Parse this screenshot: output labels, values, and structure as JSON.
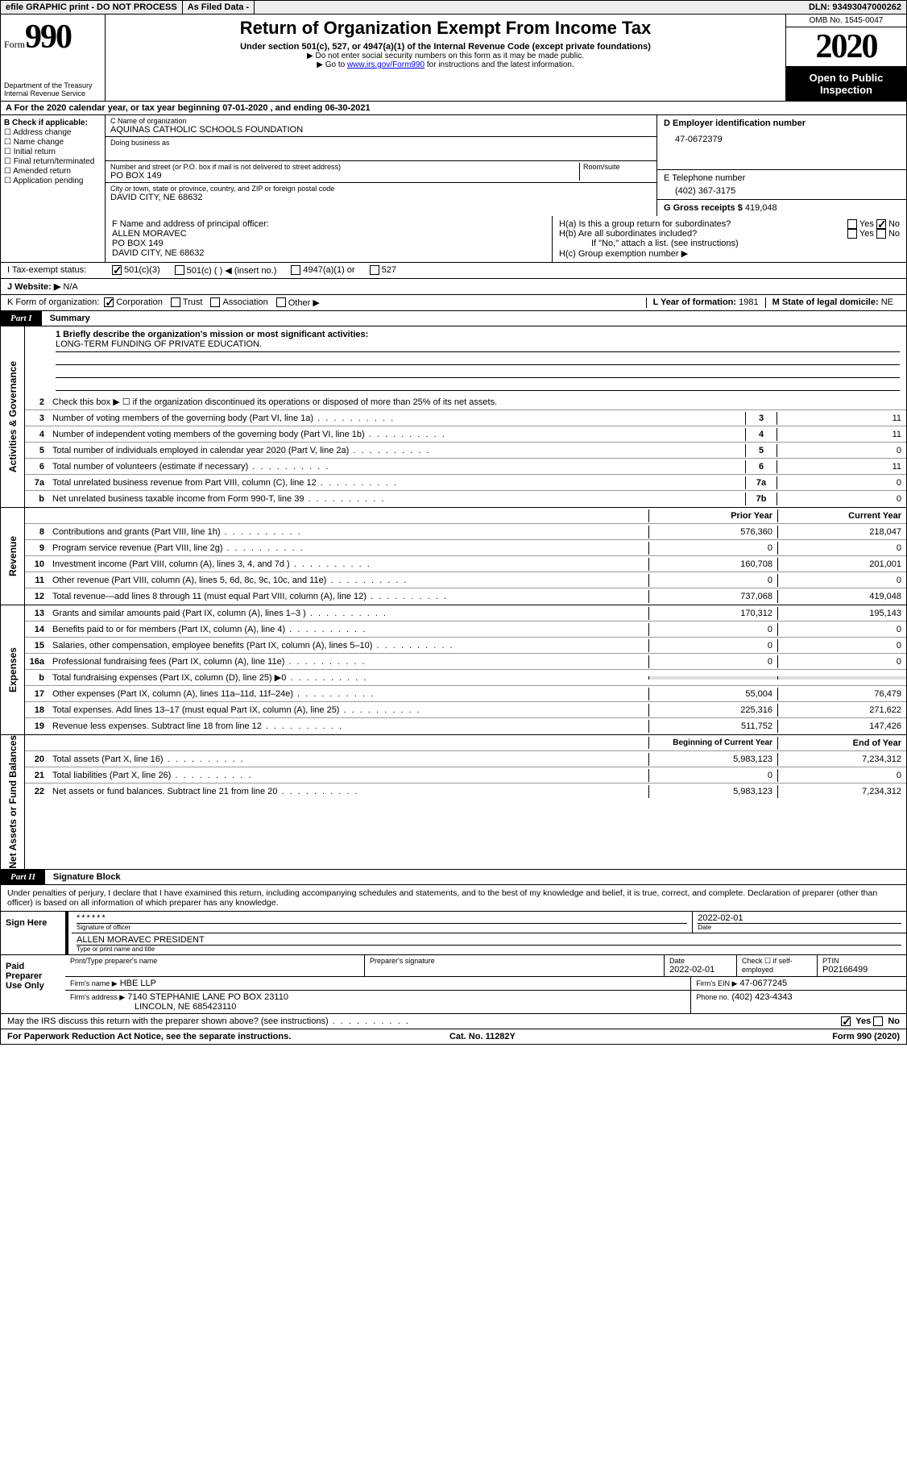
{
  "topbar": {
    "efile": "efile GRAPHIC print - DO NOT PROCESS",
    "asfiled": "As Filed Data -",
    "dln": "DLN: 93493047000262"
  },
  "header": {
    "formword": "Form",
    "formnum": "990",
    "dept1": "Department of the Treasury",
    "dept2": "Internal Revenue Service",
    "title": "Return of Organization Exempt From Income Tax",
    "sub": "Under section 501(c), 527, or 4947(a)(1) of the Internal Revenue Code (except private foundations)",
    "note1": "▶ Do not enter social security numbers on this form as it may be made public.",
    "note2_pre": "▶ Go to ",
    "note2_link": "www.irs.gov/Form990",
    "note2_post": " for instructions and the latest information.",
    "omb": "OMB No. 1545-0047",
    "year": "2020",
    "inspect": "Open to Public Inspection"
  },
  "rowA": "A  For the 2020 calendar year, or tax year beginning 07-01-2020   , and ending 06-30-2021",
  "boxB": {
    "title": "B Check if applicable:",
    "items": [
      "☐ Address change",
      "☐ Name change",
      "☐ Initial return",
      "☐ Final return/terminated",
      "☐ Amended return",
      "☐ Application pending"
    ]
  },
  "boxC": {
    "nameLbl": "C Name of organization",
    "name": "AQUINAS CATHOLIC SCHOOLS FOUNDATION",
    "dbaLbl": "Doing business as",
    "dba": "",
    "addrLbl": "Number and street (or P.O. box if mail is not delivered to street address)",
    "room": "Room/suite",
    "addr": "PO BOX 149",
    "cityLbl": "City or town, state or province, country, and ZIP or foreign postal code",
    "city": "DAVID CITY, NE  68632"
  },
  "boxD": {
    "lbl": "D Employer identification number",
    "val": "47-0672379"
  },
  "boxE": {
    "lbl": "E Telephone number",
    "val": "(402) 367-3175"
  },
  "boxG": {
    "lbl": "G Gross receipts $",
    "val": "419,048"
  },
  "boxF": {
    "lbl": "F  Name and address of principal officer:",
    "l1": "ALLEN MORAVEC",
    "l2": "PO BOX 149",
    "l3": "DAVID CITY, NE  68632"
  },
  "boxH": {
    "a": "H(a)  Is this a group return for subordinates?",
    "ayes": "Yes",
    "ano": "No",
    "b": "H(b)  Are all subordinates included?",
    "byes": "Yes",
    "bno": "No",
    "bnote": "If \"No,\" attach a list. (see instructions)",
    "c": "H(c)  Group exemption number ▶"
  },
  "lineI": {
    "lbl": "I   Tax-exempt status:",
    "o1": "501(c)(3)",
    "o2": "501(c) (   ) ◀ (insert no.)",
    "o3": "4947(a)(1) or",
    "o4": "527"
  },
  "lineJ": {
    "lbl": "J   Website: ▶",
    "val": "N/A"
  },
  "lineK": {
    "lbl": "K Form of organization:",
    "o1": "Corporation",
    "o2": "Trust",
    "o3": "Association",
    "o4": "Other ▶"
  },
  "lineL": {
    "lbl": "L Year of formation:",
    "val": "1981"
  },
  "lineM": {
    "lbl": "M State of legal domicile:",
    "val": "NE"
  },
  "part1": {
    "tab": "Part I",
    "title": "Summary"
  },
  "mission": {
    "lbl": "1 Briefly describe the organization's mission or most significant activities:",
    "val": "LONG-TERM FUNDING OF PRIVATE EDUCATION."
  },
  "govRows": [
    {
      "n": "2",
      "t": "Check this box ▶ ☐  if the organization discontinued its operations or disposed of more than 25% of its net assets."
    },
    {
      "n": "3",
      "t": "Number of voting members of the governing body (Part VI, line 1a)",
      "k": "3",
      "v": "11"
    },
    {
      "n": "4",
      "t": "Number of independent voting members of the governing body (Part VI, line 1b)",
      "k": "4",
      "v": "11"
    },
    {
      "n": "5",
      "t": "Total number of individuals employed in calendar year 2020 (Part V, line 2a)",
      "k": "5",
      "v": "0"
    },
    {
      "n": "6",
      "t": "Total number of volunteers (estimate if necessary)",
      "k": "6",
      "v": "11"
    },
    {
      "n": "7a",
      "t": "Total unrelated business revenue from Part VIII, column (C), line 12",
      "k": "7a",
      "v": "0"
    },
    {
      "n": "b",
      "t": "Net unrelated business taxable income from Form 990-T, line 39",
      "k": "7b",
      "v": "0"
    }
  ],
  "yearHdr": {
    "prior": "Prior Year",
    "curr": "Current Year"
  },
  "revRows": [
    {
      "n": "8",
      "t": "Contributions and grants (Part VIII, line 1h)",
      "p": "576,360",
      "c": "218,047"
    },
    {
      "n": "9",
      "t": "Program service revenue (Part VIII, line 2g)",
      "p": "0",
      "c": "0"
    },
    {
      "n": "10",
      "t": "Investment income (Part VIII, column (A), lines 3, 4, and 7d )",
      "p": "160,708",
      "c": "201,001"
    },
    {
      "n": "11",
      "t": "Other revenue (Part VIII, column (A), lines 5, 6d, 8c, 9c, 10c, and 11e)",
      "p": "0",
      "c": "0"
    },
    {
      "n": "12",
      "t": "Total revenue—add lines 8 through 11 (must equal Part VIII, column (A), line 12)",
      "p": "737,068",
      "c": "419,048"
    }
  ],
  "expRows": [
    {
      "n": "13",
      "t": "Grants and similar amounts paid (Part IX, column (A), lines 1–3 )",
      "p": "170,312",
      "c": "195,143"
    },
    {
      "n": "14",
      "t": "Benefits paid to or for members (Part IX, column (A), line 4)",
      "p": "0",
      "c": "0"
    },
    {
      "n": "15",
      "t": "Salaries, other compensation, employee benefits (Part IX, column (A), lines 5–10)",
      "p": "0",
      "c": "0"
    },
    {
      "n": "16a",
      "t": "Professional fundraising fees (Part IX, column (A), line 11e)",
      "p": "0",
      "c": "0"
    },
    {
      "n": "b",
      "t": "Total fundraising expenses (Part IX, column (D), line 25) ▶0",
      "p": "",
      "c": "",
      "grey": true
    },
    {
      "n": "17",
      "t": "Other expenses (Part IX, column (A), lines 11a–11d, 11f–24e)",
      "p": "55,004",
      "c": "76,479"
    },
    {
      "n": "18",
      "t": "Total expenses. Add lines 13–17 (must equal Part IX, column (A), line 25)",
      "p": "225,316",
      "c": "271,622"
    },
    {
      "n": "19",
      "t": "Revenue less expenses. Subtract line 18 from line 12",
      "p": "511,752",
      "c": "147,426"
    }
  ],
  "balHdr": {
    "b": "Beginning of Current Year",
    "e": "End of Year"
  },
  "balRows": [
    {
      "n": "20",
      "t": "Total assets (Part X, line 16)",
      "p": "5,983,123",
      "c": "7,234,312"
    },
    {
      "n": "21",
      "t": "Total liabilities (Part X, line 26)",
      "p": "0",
      "c": "0"
    },
    {
      "n": "22",
      "t": "Net assets or fund balances. Subtract line 21 from line 20",
      "p": "5,983,123",
      "c": "7,234,312"
    }
  ],
  "vtabs": {
    "gov": "Activities & Governance",
    "rev": "Revenue",
    "exp": "Expenses",
    "bal": "Net Assets or Fund Balances"
  },
  "part2": {
    "tab": "Part II",
    "title": "Signature Block"
  },
  "sigDecl": "Under penalties of perjury, I declare that I have examined this return, including accompanying schedules and statements, and to the best of my knowledge and belief, it is true, correct, and complete. Declaration of preparer (other than officer) is based on all information of which preparer has any knowledge.",
  "signHere": {
    "lbl": "Sign Here",
    "stars": "******",
    "sigof": "Signature of officer",
    "date": "2022-02-01",
    "dateLbl": "Date",
    "name": "ALLEN MORAVEC PRESIDENT",
    "nameLbl": "Type or print name and title"
  },
  "paid": {
    "lbl": "Paid Preparer Use Only",
    "h1": "Print/Type preparer's name",
    "h2": "Preparer's signature",
    "h3": "Date",
    "h3v": "2022-02-01",
    "h4": "Check ☐ if self-employed",
    "h5": "PTIN",
    "h5v": "P02166499",
    "firmLbl": "Firm's name  ▶",
    "firm": "HBE LLP",
    "einLbl": "Firm's EIN ▶",
    "ein": "47-0677245",
    "addrLbl": "Firm's address ▶",
    "addr1": "7140 STEPHANIE LANE PO BOX 23110",
    "addr2": "LINCOLN, NE 685423110",
    "phLbl": "Phone no.",
    "ph": "(402) 423-4343"
  },
  "mayIRS": {
    "t": "May the IRS discuss this return with the preparer shown above? (see instructions)",
    "yes": "Yes",
    "no": "No"
  },
  "footer": {
    "l": "For Paperwork Reduction Act Notice, see the separate instructions.",
    "m": "Cat. No. 11282Y",
    "r": "Form 990 (2020)"
  }
}
